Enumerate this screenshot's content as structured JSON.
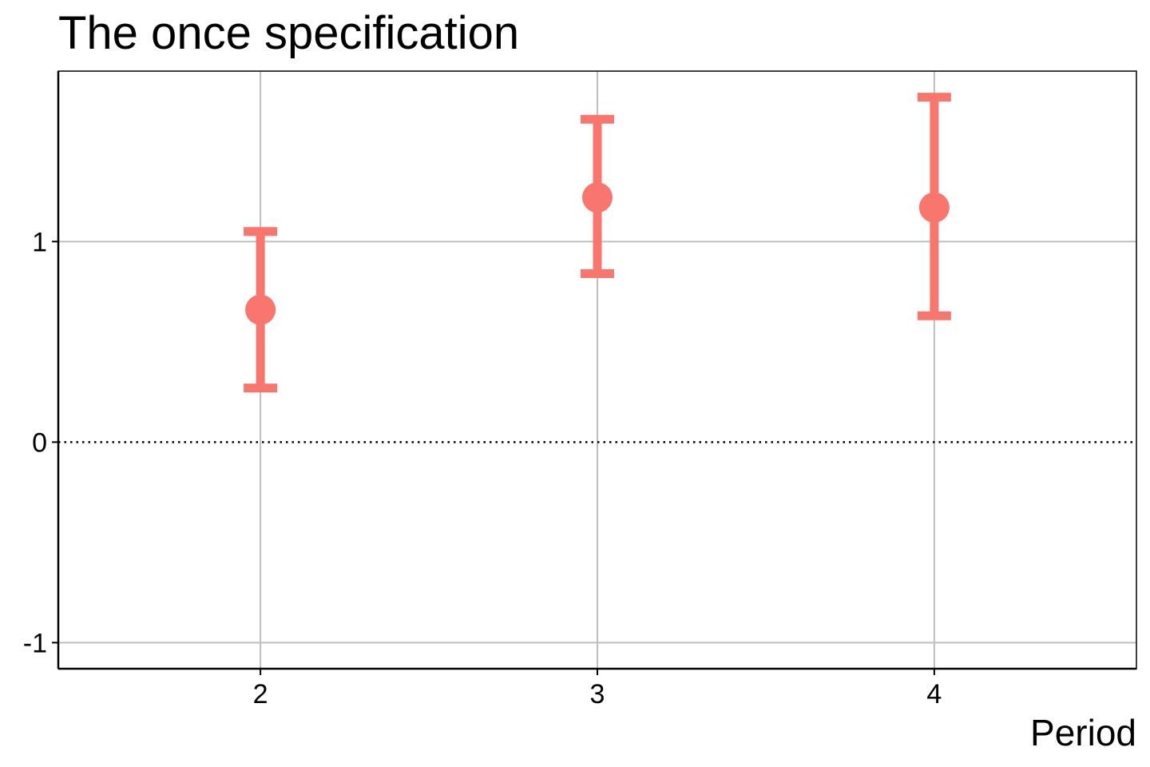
{
  "chart_data": {
    "type": "scatter",
    "title": "The once specification",
    "xlabel": "Period",
    "ylabel": "",
    "categories": [
      "2",
      "3",
      "4"
    ],
    "x": [
      2,
      3,
      4
    ],
    "xlim": [
      1.4,
      4.6
    ],
    "ylim": [
      -1.13,
      1.85
    ],
    "yticks": [
      -1,
      0,
      1
    ],
    "ytick_labels": [
      "-1",
      "0",
      "1"
    ],
    "xtick_labels": [
      "2",
      "3",
      "4"
    ],
    "reference_line": {
      "y": 0,
      "style": "dotted"
    },
    "grid": true,
    "series": [
      {
        "values": [
          0.66,
          1.22,
          1.17
        ],
        "lower": [
          0.27,
          0.84,
          0.63
        ],
        "upper": [
          1.05,
          1.61,
          1.72
        ]
      }
    ],
    "colors": {
      "series": "#F8766D",
      "grid": "#BEBEBE",
      "axis": "#000000"
    }
  }
}
